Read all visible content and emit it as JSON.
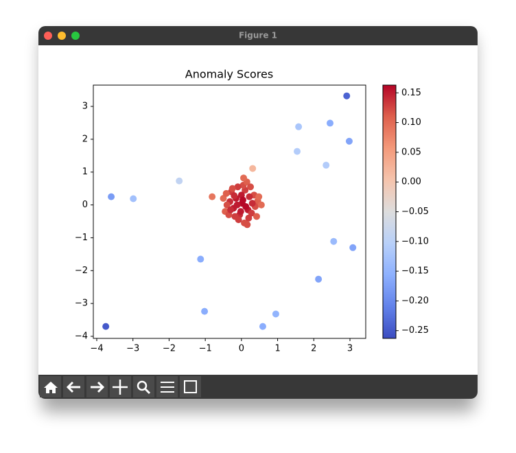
{
  "window": {
    "title": "Figure 1"
  },
  "chart_data": {
    "type": "scatter",
    "title": "Anomaly Scores",
    "colormap": "coolwarm",
    "x": [
      2.91,
      1.58,
      2.45,
      2.98,
      1.54,
      2.34,
      0.31,
      -1.72,
      -3.6,
      -2.99,
      2.55,
      3.08,
      -1.13,
      2.13,
      -1.02,
      0.95,
      0.59,
      -3.75,
      -0.81,
      0.02,
      -0.15,
      0.18,
      -0.32,
      0.35,
      -0.05,
      0.1,
      -0.22,
      0.28,
      -0.4,
      0.45,
      0.05,
      -0.1,
      0.22,
      -0.28,
      0.12,
      -0.45,
      0.38,
      -0.18,
      0.0,
      0.3,
      -0.35,
      0.15,
      -0.08,
      0.08,
      -0.25,
      0.42,
      -0.5,
      0.55,
      0.2,
      -0.12,
      0.25,
      -0.3,
      0.48,
      -0.42,
      0.04,
      0.16,
      -0.2,
      0.06,
      -0.02
    ],
    "y": [
      3.32,
      2.38,
      2.49,
      1.94,
      1.63,
      1.21,
      1.11,
      0.73,
      0.25,
      0.19,
      -1.11,
      -1.3,
      -1.65,
      -2.26,
      -3.24,
      -3.32,
      -3.7,
      -3.7,
      0.25,
      0.05,
      0.2,
      -0.15,
      0.1,
      0.3,
      -0.3,
      0.45,
      -0.1,
      -0.25,
      0.0,
      0.12,
      0.6,
      0.55,
      0.25,
      0.4,
      -0.05,
      -0.2,
      -0.05,
      -0.35,
      0.3,
      0.05,
      -0.3,
      0.7,
      -0.45,
      -0.55,
      0.5,
      -0.35,
      0.2,
      0.0,
      -0.4,
      0.0,
      0.55,
      -0.15,
      0.25,
      0.35,
      0.15,
      -0.6,
      0.28,
      0.82,
      -0.2
    ],
    "scores": [
      -0.24,
      -0.12,
      -0.16,
      -0.17,
      -0.11,
      -0.11,
      0.02,
      -0.09,
      -0.18,
      -0.13,
      -0.14,
      -0.17,
      -0.16,
      -0.17,
      -0.16,
      -0.15,
      -0.16,
      -0.25,
      0.09,
      0.16,
      0.15,
      0.15,
      0.14,
      0.12,
      0.14,
      0.13,
      0.15,
      0.13,
      0.12,
      0.11,
      0.12,
      0.13,
      0.14,
      0.13,
      0.16,
      0.11,
      0.12,
      0.13,
      0.15,
      0.14,
      0.12,
      0.11,
      0.13,
      0.12,
      0.12,
      0.11,
      0.1,
      0.1,
      0.13,
      0.15,
      0.12,
      0.14,
      0.1,
      0.11,
      0.16,
      0.12,
      0.14,
      0.1,
      0.15
    ],
    "xlim": [
      -4.095,
      3.436
    ],
    "ylim": [
      -4.063,
      3.648
    ],
    "xticks": [
      {
        "value": -4,
        "label": "−4"
      },
      {
        "value": -3,
        "label": "−3"
      },
      {
        "value": -2,
        "label": "−2"
      },
      {
        "value": -1,
        "label": "−1"
      },
      0,
      1,
      2,
      3
    ],
    "yticks": [
      {
        "value": -4,
        "label": "−4"
      },
      {
        "value": -3,
        "label": "−3"
      },
      {
        "value": -2,
        "label": "−2"
      },
      {
        "value": -1,
        "label": "−1"
      },
      0,
      1,
      2,
      3
    ],
    "clim": [
      -0.263,
      0.163
    ],
    "cticks": [
      0.15,
      {
        "value": 0.1,
        "label": "0.10"
      },
      0.05,
      {
        "value": 0,
        "label": "0.00"
      },
      {
        "value": -0.05,
        "label": "−0.05"
      },
      {
        "value": -0.1,
        "label": "−0.10"
      },
      {
        "value": -0.15,
        "label": "−0.15"
      },
      {
        "value": -0.2,
        "label": "−0.20"
      },
      {
        "value": -0.25,
        "label": "−0.25"
      }
    ]
  }
}
